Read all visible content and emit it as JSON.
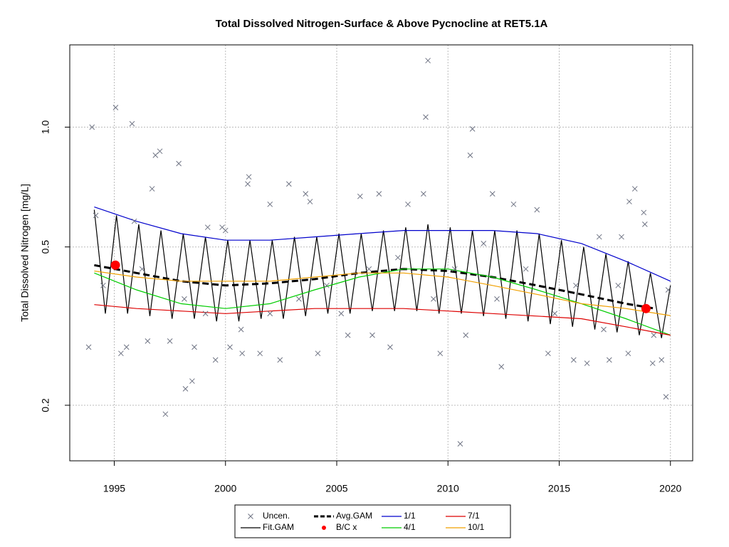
{
  "chart_data": {
    "type": "mixed",
    "title": "Total Dissolved Nitrogen-Surface & Above Pycnocline at RET5.1A",
    "y_label": "Total Dissolved Nitrogen [mg/L]",
    "xlim": [
      1993,
      2021
    ],
    "xticks": [
      1995,
      2000,
      2005,
      2010,
      2015,
      2020
    ],
    "ylim": [
      0.145,
      1.61
    ],
    "yticks": [
      0.2,
      0.5,
      {
        "value": 1,
        "label": "1.0"
      }
    ],
    "log_y": true,
    "grid": true,
    "legend": "bottom",
    "series": [
      {
        "name": "Uncen.",
        "type": "scatter",
        "color": "#6e7383",
        "x": [
          1994.0,
          1995.06,
          1995.8,
          1996.85,
          1997.05,
          1996.7,
          1997.9,
          1997.3,
          1998.2,
          1998.5,
          2009.1,
          2009.0,
          2011.1,
          2011.0,
          2010.55,
          2019.8,
          2018.4,
          2018.15,
          2018.8,
          2018.85,
          2001.05,
          2001.0,
          2002.85,
          2003.6,
          2003.8,
          2002.0,
          2006.05,
          2006.9,
          2008.2,
          2008.9,
          2012.0,
          2012.95,
          2014.0,
          2016.8,
          2017.8,
          1994.17,
          1999.2,
          1999.85,
          2000.0,
          1995.9,
          1993.85,
          1995.3,
          1995.55,
          1996.5,
          1997.5,
          1998.6,
          1999.55,
          2000.2,
          2000.75,
          2001.55,
          2002.45,
          2004.15,
          2005.5,
          2006.6,
          2007.4,
          2009.65,
          2010.8,
          2012.4,
          2014.5,
          2015.65,
          2016.25,
          2017.25,
          2018.1,
          2019.2,
          2019.6,
          1994.5,
          1996.25,
          1998.15,
          1999.1,
          2000.7,
          2002.0,
          2003.3,
          2004.55,
          2005.2,
          2006.45,
          2007.75,
          2009.35,
          2010.3,
          2011.6,
          2012.2,
          2013.5,
          2014.8,
          2015.75,
          2017.0,
          2017.65,
          2019.25,
          2019.9
        ],
        "values": [
          1.0,
          1.12,
          1.02,
          0.85,
          0.87,
          0.7,
          0.81,
          0.19,
          0.22,
          0.23,
          1.47,
          1.06,
          0.99,
          0.85,
          0.16,
          0.21,
          0.7,
          0.65,
          0.61,
          0.57,
          0.75,
          0.72,
          0.72,
          0.68,
          0.65,
          0.64,
          0.67,
          0.68,
          0.64,
          0.68,
          0.68,
          0.64,
          0.62,
          0.53,
          0.53,
          0.6,
          0.56,
          0.56,
          0.55,
          0.58,
          0.28,
          0.27,
          0.28,
          0.29,
          0.29,
          0.28,
          0.26,
          0.28,
          0.27,
          0.27,
          0.26,
          0.27,
          0.3,
          0.3,
          0.28,
          0.27,
          0.3,
          0.25,
          0.27,
          0.26,
          0.255,
          0.26,
          0.27,
          0.255,
          0.26,
          0.4,
          0.44,
          0.37,
          0.34,
          0.31,
          0.34,
          0.37,
          0.4,
          0.34,
          0.44,
          0.47,
          0.37,
          0.44,
          0.51,
          0.37,
          0.44,
          0.34,
          0.4,
          0.31,
          0.4,
          0.3,
          0.39
        ]
      },
      {
        "name": "Fit.GAM",
        "type": "line",
        "color": "#000000",
        "x": [
          1994.1,
          1994.6,
          1995.1,
          1995.6,
          1996.1,
          1996.6,
          1997.1,
          1997.6,
          1998.1,
          1998.6,
          1999.1,
          1999.6,
          2000.1,
          2000.6,
          2001.1,
          2001.6,
          2002.1,
          2002.6,
          2003.1,
          2003.6,
          2004.1,
          2004.6,
          2005.1,
          2005.6,
          2006.1,
          2006.6,
          2007.1,
          2007.6,
          2008.1,
          2008.6,
          2009.1,
          2009.6,
          2010.1,
          2010.6,
          2011.1,
          2011.6,
          2012.1,
          2012.6,
          2013.1,
          2013.6,
          2014.1,
          2014.6,
          2015.1,
          2015.6,
          2016.1,
          2016.6,
          2017.1,
          2017.6,
          2018.1,
          2018.6,
          2019.1,
          2019.6,
          2020.0
        ],
        "values": [
          0.62,
          0.34,
          0.6,
          0.34,
          0.57,
          0.335,
          0.55,
          0.33,
          0.54,
          0.33,
          0.53,
          0.325,
          0.52,
          0.325,
          0.52,
          0.33,
          0.52,
          0.33,
          0.53,
          0.335,
          0.53,
          0.34,
          0.54,
          0.34,
          0.54,
          0.345,
          0.55,
          0.345,
          0.56,
          0.345,
          0.57,
          0.34,
          0.56,
          0.34,
          0.55,
          0.335,
          0.55,
          0.33,
          0.55,
          0.325,
          0.54,
          0.32,
          0.52,
          0.315,
          0.5,
          0.31,
          0.48,
          0.305,
          0.46,
          0.3,
          0.43,
          0.295,
          0.4
        ]
      },
      {
        "name": "Avg.GAM",
        "type": "line",
        "dashed": true,
        "color": "#000000",
        "x": [
          1994.1,
          1996,
          1998,
          2000,
          2002,
          2004,
          2006,
          2008,
          2010,
          2012,
          2014,
          2016,
          2018,
          2019.3
        ],
        "values": [
          0.45,
          0.43,
          0.41,
          0.4,
          0.405,
          0.415,
          0.43,
          0.44,
          0.435,
          0.42,
          0.4,
          0.38,
          0.36,
          0.35
        ]
      },
      {
        "name": "B/C x",
        "type": "points",
        "color": "#ff0000",
        "x": [
          1995.05,
          2018.9
        ],
        "values": [
          0.45,
          0.35
        ]
      },
      {
        "name": "1/1",
        "type": "line",
        "color": "#0000cc",
        "x": [
          1994.1,
          1996,
          1998,
          2000,
          2002,
          2004,
          2006,
          2008,
          2010,
          2012,
          2014,
          2016,
          2018,
          2020
        ],
        "values": [
          0.63,
          0.58,
          0.54,
          0.52,
          0.52,
          0.53,
          0.54,
          0.55,
          0.55,
          0.55,
          0.54,
          0.51,
          0.46,
          0.41
        ]
      },
      {
        "name": "4/1",
        "type": "line",
        "color": "#00cc00",
        "x": [
          1994.1,
          1996,
          1998,
          2000,
          2002,
          2004,
          2006,
          2008,
          2010,
          2012,
          2014,
          2016,
          2018,
          2020
        ],
        "values": [
          0.43,
          0.39,
          0.36,
          0.35,
          0.36,
          0.39,
          0.42,
          0.44,
          0.44,
          0.42,
          0.39,
          0.36,
          0.33,
          0.3
        ]
      },
      {
        "name": "7/1",
        "type": "line",
        "color": "#dd0000",
        "x": [
          1994.1,
          1996,
          1998,
          2000,
          2002,
          2004,
          2006,
          2008,
          2010,
          2012,
          2014,
          2016,
          2018,
          2020
        ],
        "values": [
          0.358,
          0.35,
          0.345,
          0.34,
          0.345,
          0.35,
          0.35,
          0.35,
          0.345,
          0.34,
          0.335,
          0.33,
          0.315,
          0.3
        ]
      },
      {
        "name": "10/1",
        "type": "line",
        "color": "#f0a000",
        "x": [
          1994.1,
          1996,
          1998,
          2000,
          2002,
          2004,
          2006,
          2008,
          2010,
          2012,
          2014,
          2016,
          2018,
          2020
        ],
        "values": [
          0.435,
          0.42,
          0.41,
          0.41,
          0.41,
          0.42,
          0.43,
          0.43,
          0.42,
          0.4,
          0.38,
          0.36,
          0.35,
          0.336
        ]
      }
    ]
  }
}
